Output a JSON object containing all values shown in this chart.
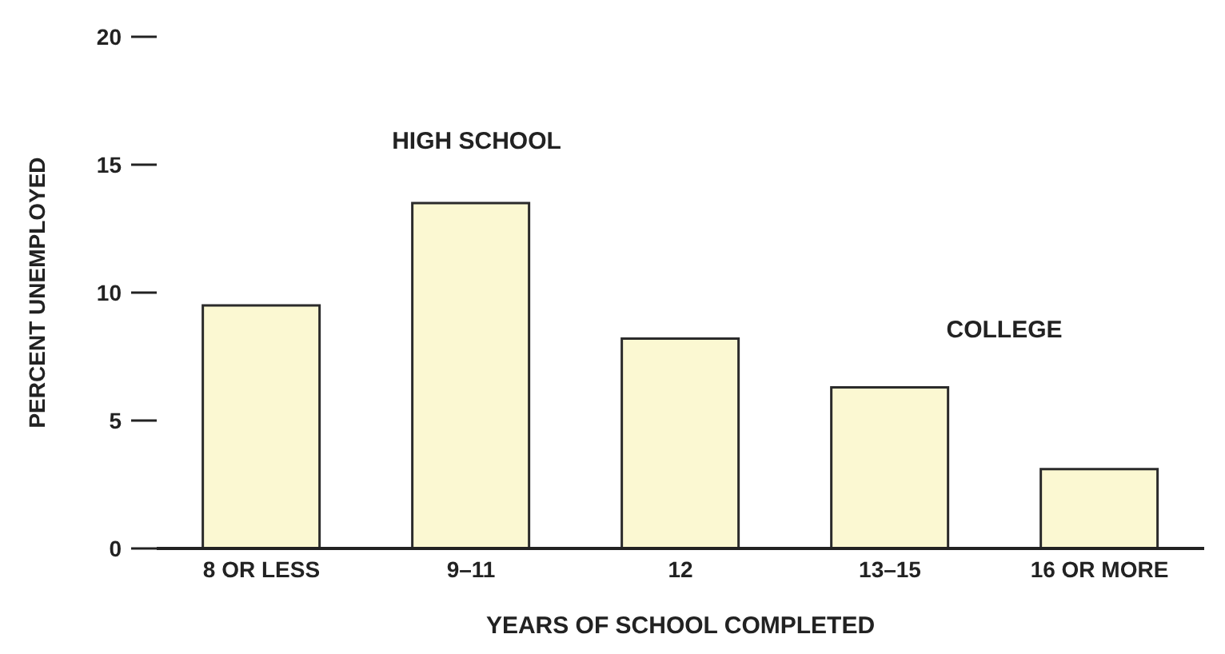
{
  "chart_data": {
    "type": "bar",
    "xlabel": "YEARS OF SCHOOL COMPLETED",
    "ylabel": "PERCENT UNEMPLOYED",
    "categories": [
      "8 OR LESS",
      "9–11",
      "12",
      "13–15",
      "16 OR MORE"
    ],
    "values": [
      9.5,
      13.5,
      8.2,
      6.3,
      3.1
    ],
    "color": "#fbf8d2",
    "ylim": [
      0,
      20
    ],
    "yticks": [
      0,
      5,
      10,
      15,
      20
    ],
    "grid": false,
    "annotations": [
      "HIGH SCHOOL",
      "COLLEGE"
    ]
  }
}
